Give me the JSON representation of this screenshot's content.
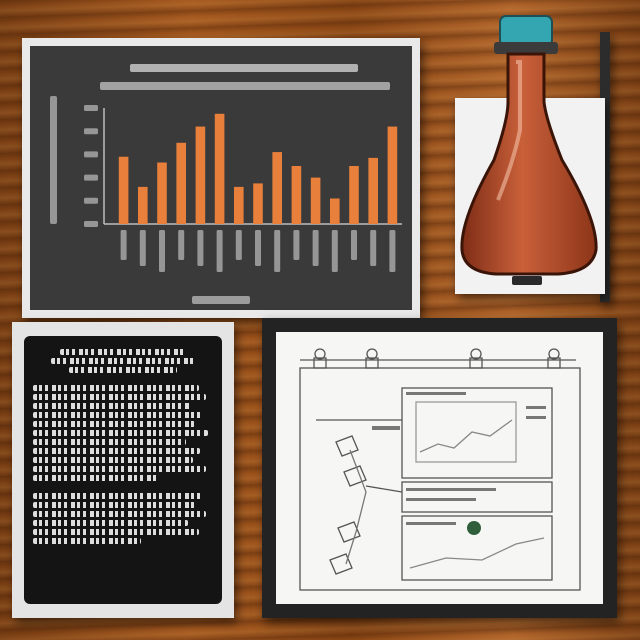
{
  "chart_data": {
    "type": "bar",
    "categories": [
      "",
      "",
      "",
      "",
      "",
      "",
      "",
      "",
      "",
      "",
      "",
      "",
      "",
      "",
      ""
    ],
    "values": [
      58,
      32,
      53,
      70,
      84,
      95,
      32,
      35,
      62,
      50,
      40,
      22,
      50,
      57,
      84
    ],
    "ylim": [
      0,
      100
    ],
    "grid": false
  },
  "colors": {
    "bar": "#e8803c",
    "chart_bg": "#3a3a3a",
    "flask_liquid": "#b9502f",
    "flask_cap": "#34a6b1",
    "wood": "#8a4a1c"
  },
  "icons": {
    "flask": "flask-icon",
    "pins": "binder-clip-icon"
  }
}
